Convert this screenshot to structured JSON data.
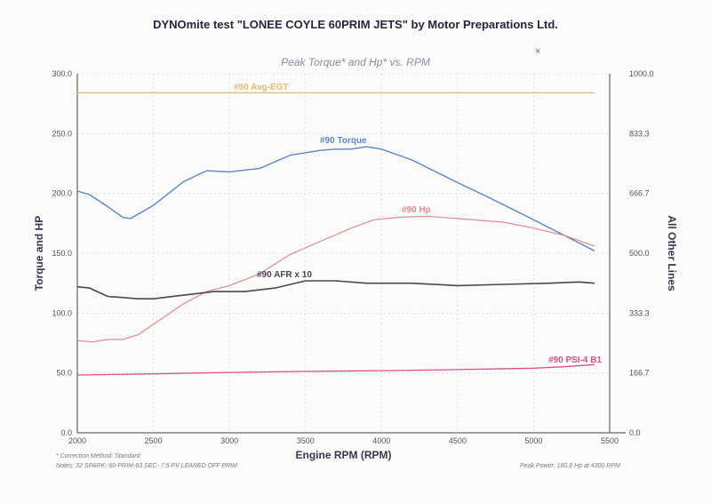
{
  "chart_data": {
    "type": "line",
    "title": "DYNOmite test \"LONEE COYLE 60PRIM JETS\" by Motor Preparations Ltd.",
    "subtitle": "Peak Torque* and Hp* vs. RPM",
    "xlabel": "Engine RPM (RPM)",
    "ylabel_left": "Torque and HP",
    "ylabel_right": "All Other Lines",
    "xlim": [
      2000,
      5500
    ],
    "ylim_left": [
      0,
      300
    ],
    "ylim_right": [
      0,
      1000
    ],
    "x_ticks": [
      "2000",
      "2500",
      "3000",
      "3500",
      "4000",
      "4500",
      "5000",
      "5500"
    ],
    "y_left_ticks": [
      "0.0",
      "50.0",
      "100.0",
      "150.0",
      "200.0",
      "250.0",
      "300.0"
    ],
    "y_right_ticks": [
      "0.0",
      "166.7",
      "333.3",
      "500.0",
      "666.7",
      "833.3",
      "1000.0"
    ],
    "series": [
      {
        "name": "#90 Torque",
        "axis": "left",
        "color": "#5b87c9",
        "x": [
          2000,
          2080,
          2200,
          2300,
          2350,
          2500,
          2700,
          2850,
          3000,
          3200,
          3400,
          3600,
          3700,
          3800,
          3900,
          4000,
          4200,
          4500,
          4700,
          5000,
          5200,
          5400
        ],
        "y": [
          202,
          199,
          189,
          180,
          179,
          190,
          210,
          219,
          218,
          221,
          232,
          236,
          237,
          237,
          239,
          237,
          228,
          209,
          197,
          178,
          165,
          152
        ]
      },
      {
        "name": "#90 Hp",
        "axis": "left",
        "color": "#e08a95",
        "x": [
          2000,
          2100,
          2200,
          2300,
          2400,
          2550,
          2700,
          2850,
          3000,
          3200,
          3400,
          3600,
          3800,
          3950,
          4100,
          4300,
          4500,
          4800,
          5000,
          5200,
          5400
        ],
        "y": [
          77,
          76,
          78,
          78,
          82,
          95,
          108,
          118,
          123,
          133,
          149,
          160,
          171,
          178,
          180,
          181,
          179,
          176,
          171,
          165,
          156
        ]
      },
      {
        "name": "#90 AFR x 10",
        "axis": "left",
        "color": "#4a4658",
        "x": [
          2000,
          2080,
          2200,
          2400,
          2500,
          2700,
          2900,
          3100,
          3300,
          3500,
          3700,
          3900,
          4200,
          4500,
          4800,
          5100,
          5300,
          5400
        ],
        "y": [
          122,
          121,
          114,
          112,
          112,
          115,
          118,
          118,
          121,
          127,
          127,
          125,
          125,
          123,
          124,
          125,
          126,
          125
        ]
      },
      {
        "name": "#90 PSI-4 B1",
        "axis": "right",
        "color": "#d94f8c",
        "x": [
          2000,
          2500,
          3000,
          3500,
          4000,
          4500,
          5000,
          5200,
          5400
        ],
        "y": [
          161,
          164,
          168,
          171,
          173,
          176,
          180,
          184,
          190
        ]
      },
      {
        "name": "#90 Avg-EGT",
        "axis": "right",
        "color": "#e9b877",
        "x": [
          2000,
          5400
        ],
        "y": [
          947,
          947
        ]
      }
    ],
    "notes": [
      "* Correction Method: Standard",
      "Notes: 32 SPARK- 60-PRIM-63 SEC- 7.5 PV LEANED OFF PRIM",
      "Peak Power: 180.8 Hp at 4300 RPM"
    ]
  },
  "annotations": {
    "egt_label": "#90 Avg-EGT",
    "torque_label": "#90 Torque",
    "hp_label": "#90 Hp",
    "afr_label": "#90 AFR x 10",
    "psi_label": "#90 PSI-4 B1"
  },
  "scribble_mark": "×",
  "styles": {
    "grid_color": "#d8d8e0",
    "axis_color": "#444",
    "tick_color": "#555",
    "label_color": "#3a3550"
  }
}
